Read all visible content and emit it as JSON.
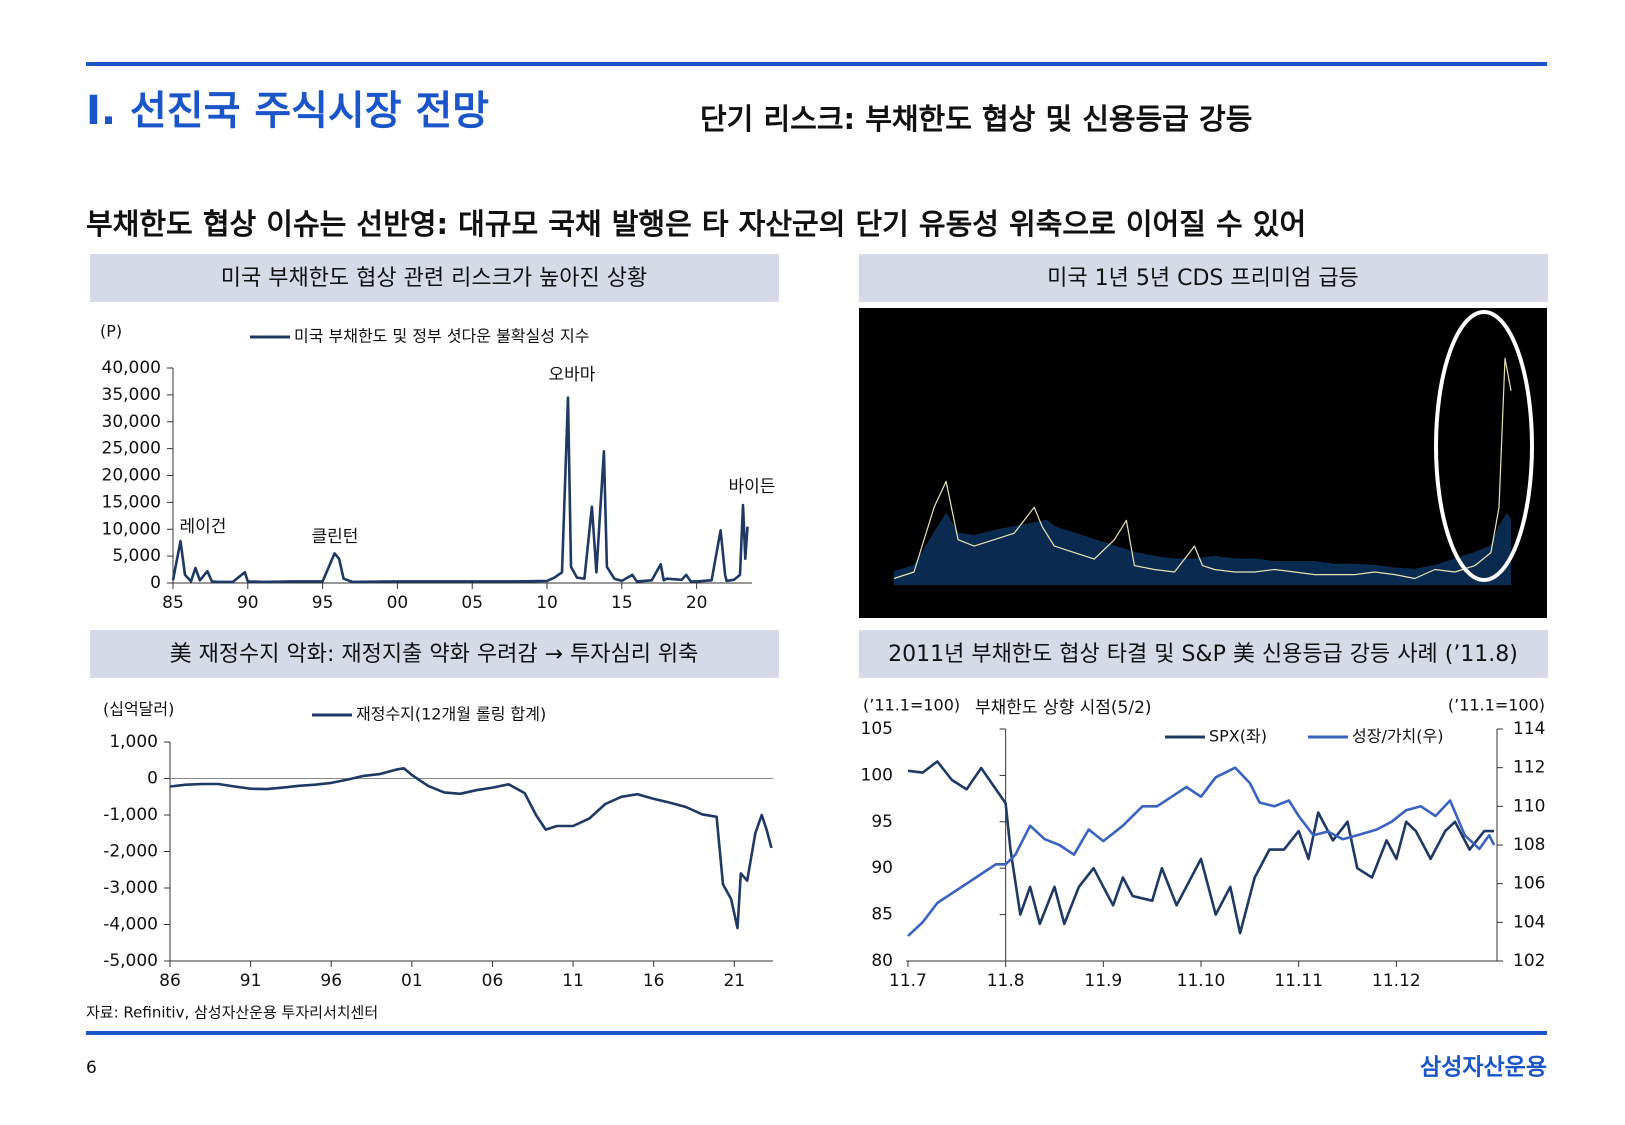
{
  "header": {
    "title": "I. 선진국 주식시장 전망",
    "subtitle": "단기 리스크: 부채한도 협상 및 신용등급 강등"
  },
  "headline": "부채한도 협상 이슈는 선반영: 대규모 국채 발행은 타 자산군의 단기 유동성 위축으로 이어질 수 있어",
  "source": "자료: Refinitiv, 삼성자산운용 투자리서치센터",
  "page_number": "6",
  "brand": "삼성자산운용",
  "chart_data": [
    {
      "type": "line",
      "panel_title": "미국 부채한도 협상 관련 리스크가 높아진 상황",
      "y_unit": "(P)",
      "x": [
        1985,
        1985.5,
        1985.8,
        1986.2,
        1986.5,
        1986.8,
        1987.3,
        1987.6,
        1988,
        1989,
        1989.8,
        1990,
        1991,
        1993,
        1995,
        1995.8,
        1996.1,
        1996.4,
        1997,
        2000,
        2004,
        2006,
        2008,
        2010,
        2010.5,
        2011,
        2011.4,
        2011.6,
        2012,
        2012.5,
        2013,
        2013.3,
        2013.8,
        2014,
        2014.5,
        2015,
        2015.7,
        2016,
        2017,
        2017.6,
        2017.8,
        2018,
        2019,
        2019.3,
        2019.6,
        2020,
        2021,
        2021.6,
        2021.9,
        2022,
        2022.5,
        2022.9,
        2023.1,
        2023.25,
        2023.4
      ],
      "xlim": [
        1985,
        2023.7
      ],
      "xticks": [
        {
          "value": 1985,
          "label": "85"
        },
        {
          "value": 1990,
          "label": "90"
        },
        {
          "value": 1995,
          "label": "95"
        },
        {
          "value": 2000,
          "label": "00"
        },
        {
          "value": 2005,
          "label": "05"
        },
        {
          "value": 2010,
          "label": "10"
        },
        {
          "value": 2015,
          "label": "15"
        },
        {
          "value": 2020,
          "label": "20"
        }
      ],
      "ylim": [
        0,
        40000
      ],
      "yticks": [
        0,
        {
          "value": 5000,
          "label": "5,000"
        },
        {
          "value": 10000,
          "label": "10,000"
        },
        {
          "value": 15000,
          "label": "15,000"
        },
        {
          "value": 20000,
          "label": "20,000"
        },
        {
          "value": 25000,
          "label": "25,000"
        },
        {
          "value": 30000,
          "label": "30,000"
        },
        {
          "value": 35000,
          "label": "35,000"
        },
        {
          "value": 40000,
          "label": "40,000"
        }
      ],
      "series": [
        {
          "name": "미국 부채한도 및 정부 셧다운 불확실성 지수",
          "color": "#1f3864",
          "values": [
            500,
            7800,
            1500,
            300,
            2800,
            500,
            2200,
            300,
            200,
            200,
            2000,
            300,
            200,
            300,
            300,
            5500,
            4500,
            800,
            200,
            300,
            300,
            300,
            300,
            400,
            1000,
            2000,
            34500,
            3000,
            1000,
            800,
            14200,
            2000,
            24500,
            3000,
            800,
            400,
            1500,
            300,
            500,
            3500,
            500,
            800,
            600,
            1500,
            300,
            300,
            500,
            9800,
            1500,
            400,
            600,
            1500,
            14500,
            4500,
            10500
          ]
        }
      ],
      "annotations": [
        "레이건",
        "클린턴",
        "오바마",
        "바이든"
      ]
    },
    {
      "type": "line",
      "panel_title": "미국 1년 5년 CDS 프리미엄 급등",
      "background": "#000000",
      "xlim": [
        2007.7,
        2023.8
      ],
      "ylim": [
        0,
        200
      ],
      "series": [
        {
          "color": "#0d2d55",
          "fill": "#0b2a4f",
          "x": [
            2008,
            2008.5,
            2009,
            2009.3,
            2009.6,
            2010,
            2010.5,
            2011,
            2011.5,
            2011.8,
            2012,
            2012.5,
            2013,
            2013.5,
            2014,
            2014.5,
            2015,
            2015.5,
            2016,
            2016.5,
            2017,
            2017.5,
            2018,
            2018.5,
            2019,
            2019.5,
            2020,
            2020.5,
            2021,
            2021.5,
            2022,
            2022.5,
            2022.9,
            2023.1,
            2023.3,
            2023.4
          ],
          "values": [
            10,
            15,
            40,
            55,
            40,
            38,
            42,
            45,
            48,
            50,
            45,
            40,
            35,
            30,
            25,
            22,
            20,
            20,
            22,
            20,
            20,
            18,
            18,
            18,
            16,
            16,
            15,
            13,
            12,
            15,
            20,
            25,
            30,
            45,
            55,
            50
          ]
        },
        {
          "color": "#e8e4b8",
          "x": [
            2008,
            2008.5,
            2009,
            2009.3,
            2009.6,
            2010,
            2010.5,
            2011,
            2011.5,
            2011.7,
            2012,
            2012.5,
            2013,
            2013.5,
            2013.8,
            2014,
            2014.5,
            2015,
            2015.5,
            2015.7,
            2016,
            2016.5,
            2017,
            2017.5,
            2018,
            2018.5,
            2019,
            2019.5,
            2020,
            2020.5,
            2021,
            2021.5,
            2022,
            2022.5,
            2022.9,
            2023.1,
            2023.25,
            2023.4
          ],
          "values": [
            5,
            10,
            60,
            80,
            35,
            30,
            35,
            40,
            60,
            45,
            30,
            25,
            20,
            35,
            50,
            15,
            12,
            10,
            30,
            15,
            12,
            10,
            10,
            12,
            10,
            8,
            8,
            8,
            10,
            8,
            5,
            12,
            10,
            15,
            25,
            60,
            175,
            150
          ]
        }
      ]
    },
    {
      "type": "line",
      "panel_title": "美 재정수지 악화: 재정지출 약화 우려감 → 투자심리 위축",
      "y_unit": "(십억달러)",
      "x": [
        1986,
        1987,
        1988,
        1989,
        1990,
        1991,
        1992,
        1993,
        1994,
        1995,
        1996,
        1997,
        1998,
        1999,
        2000,
        2000.5,
        2001,
        2002,
        2003,
        2004,
        2005,
        2006,
        2007,
        2008,
        2008.7,
        2009.3,
        2010,
        2011,
        2012,
        2013,
        2014,
        2015,
        2016,
        2017,
        2018,
        2019,
        2019.9,
        2020.3,
        2020.8,
        2021.2,
        2021.4,
        2021.8,
        2022.3,
        2022.7,
        2023,
        2023.3
      ],
      "xlim": [
        1986,
        2023.4
      ],
      "xticks": [
        {
          "value": 1986,
          "label": "86"
        },
        {
          "value": 1991,
          "label": "91"
        },
        {
          "value": 1996,
          "label": "96"
        },
        {
          "value": 2001,
          "label": "01"
        },
        {
          "value": 2006,
          "label": "06"
        },
        {
          "value": 2011,
          "label": "11"
        },
        {
          "value": 2016,
          "label": "16"
        },
        {
          "value": 2021,
          "label": "21"
        }
      ],
      "ylim": [
        -5000,
        1000
      ],
      "yticks": [
        {
          "value": -5000,
          "label": "-5,000"
        },
        {
          "value": -4000,
          "label": "-4,000"
        },
        {
          "value": -3000,
          "label": "-3,000"
        },
        {
          "value": -2000,
          "label": "-2,000"
        },
        {
          "value": -1000,
          "label": "-1,000"
        },
        0,
        {
          "value": 1000,
          "label": "1,000"
        }
      ],
      "series": [
        {
          "name": "재정수지(12개월 롤링 합계)",
          "color": "#1f3864",
          "values": [
            -220,
            -170,
            -150,
            -150,
            -220,
            -280,
            -290,
            -250,
            -200,
            -170,
            -120,
            -30,
            70,
            120,
            240,
            280,
            100,
            -200,
            -380,
            -420,
            -320,
            -250,
            -160,
            -400,
            -1000,
            -1400,
            -1300,
            -1300,
            -1100,
            -700,
            -500,
            -430,
            -560,
            -660,
            -780,
            -980,
            -1050,
            -2900,
            -3300,
            -4100,
            -2600,
            -2800,
            -1500,
            -1000,
            -1400,
            -1900
          ]
        }
      ]
    },
    {
      "type": "line",
      "panel_title": "2011년 부채한도 협상 타결 및 S&P 美 신용등급 강등 사례 (’11.8)",
      "y_unit": "(’11.1=100)",
      "y2_unit": "(’11.1=100)",
      "xlim": [
        6.98,
        13.03
      ],
      "xticks": [
        {
          "value": 7,
          "label": "11.7"
        },
        {
          "value": 8,
          "label": "11.8"
        },
        {
          "value": 9,
          "label": "11.9"
        },
        {
          "value": 10,
          "label": "11.10"
        },
        {
          "value": 11,
          "label": "11.11"
        },
        {
          "value": 12,
          "label": "11.12"
        }
      ],
      "ylim": [
        80,
        105
      ],
      "yticks": [
        80,
        85,
        90,
        95,
        100,
        105
      ],
      "y2lim": [
        102,
        114
      ],
      "y2ticks": [
        102,
        104,
        106,
        108,
        110,
        112,
        114
      ],
      "series": [
        {
          "name": "SPX(좌)",
          "color": "#1f3864",
          "x": [
            7.0,
            7.15,
            7.3,
            7.45,
            7.6,
            7.75,
            7.9,
            8.0,
            8.05,
            8.15,
            8.25,
            8.35,
            8.5,
            8.6,
            8.75,
            8.9,
            9.0,
            9.1,
            9.2,
            9.3,
            9.5,
            9.6,
            9.75,
            9.9,
            10.0,
            10.15,
            10.3,
            10.4,
            10.55,
            10.7,
            10.85,
            11.0,
            11.1,
            11.2,
            11.35,
            11.5,
            11.6,
            11.75,
            11.9,
            12.0,
            12.1,
            12.2,
            12.35,
            12.5,
            12.6,
            12.75,
            12.9,
            13.0
          ],
          "values": [
            100.5,
            100.3,
            101.5,
            99.5,
            98.5,
            100.8,
            98.5,
            97,
            92,
            85,
            88,
            84,
            88,
            84,
            88,
            90,
            88,
            86,
            89,
            87,
            86.5,
            90,
            86,
            89,
            91,
            85,
            88,
            83,
            89,
            92,
            92,
            94,
            91,
            96,
            93,
            95,
            90,
            89,
            93,
            91,
            95,
            94,
            91,
            94,
            95,
            92,
            94,
            94
          ]
        },
        {
          "name": "성장/가치(우)",
          "color": "#3a62c0",
          "axis": "y2",
          "x": [
            7.0,
            7.15,
            7.3,
            7.45,
            7.6,
            7.75,
            7.9,
            8.0,
            8.1,
            8.25,
            8.4,
            8.55,
            8.7,
            8.85,
            9.0,
            9.2,
            9.4,
            9.55,
            9.7,
            9.85,
            10.0,
            10.15,
            10.35,
            10.5,
            10.6,
            10.75,
            10.9,
            11.0,
            11.15,
            11.3,
            11.45,
            11.6,
            11.8,
            11.95,
            12.1,
            12.25,
            12.4,
            12.55,
            12.7,
            12.85,
            12.95,
            13.0
          ],
          "values": [
            103.3,
            104,
            105,
            105.5,
            106,
            106.5,
            107,
            107,
            107.5,
            109,
            108.3,
            108,
            107.5,
            108.8,
            108.2,
            109,
            110,
            110,
            110.5,
            111,
            110.5,
            111.5,
            112,
            111.2,
            110.2,
            110,
            110.3,
            109.5,
            108.5,
            108.7,
            108.3,
            108.5,
            108.8,
            109.2,
            109.8,
            110,
            109.5,
            110.3,
            108.5,
            107.8,
            108.5,
            108
          ]
        }
      ],
      "annotations": [
        "부채한도 상향 시점(5/2)"
      ]
    }
  ]
}
